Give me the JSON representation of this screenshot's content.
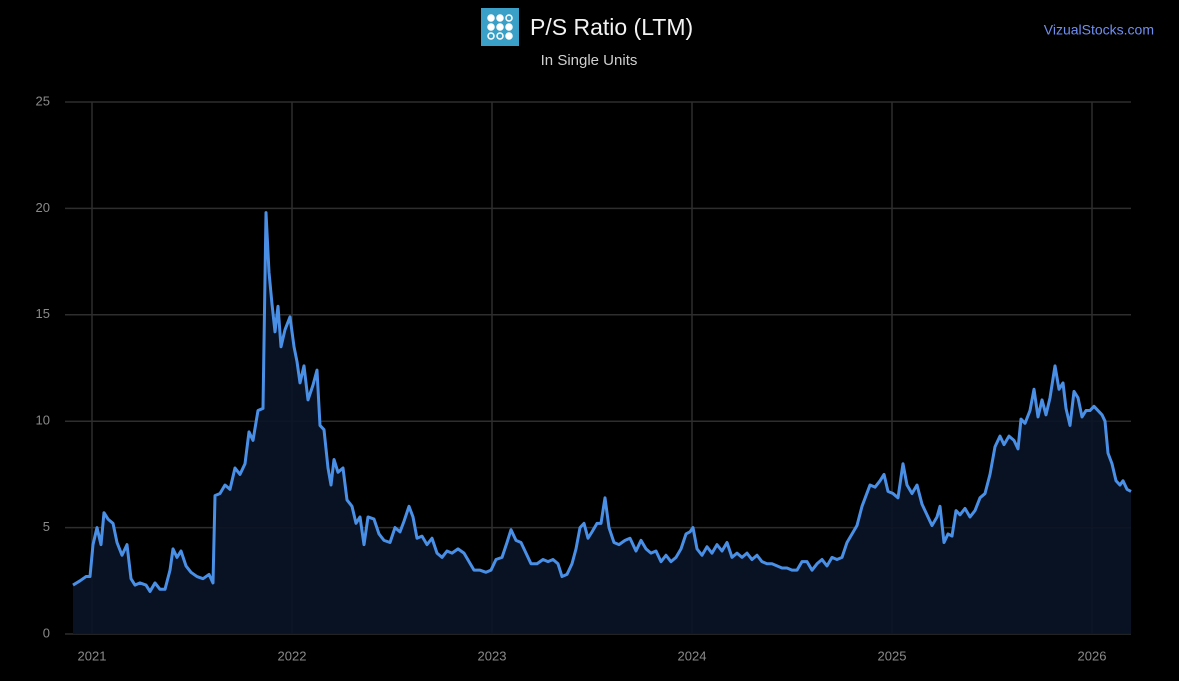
{
  "chart_data": {
    "type": "line",
    "title": "P/S Ratio (LTM)",
    "subtitle": "In Single Units",
    "watermark": "VizualStocks.com",
    "color": "#4a8fe6",
    "grid": true,
    "xlim": [
      2020.865,
      2026.195
    ],
    "xticks": [
      2021,
      2022,
      2023,
      2024,
      2025,
      2026
    ],
    "ylim": [
      0,
      25
    ],
    "yticks": [
      0,
      5,
      10,
      15,
      20,
      25
    ],
    "x": [
      2020.905,
      2020.94,
      2020.97,
      2020.99,
      2021.005,
      2021.025,
      2021.045,
      2021.06,
      2021.08,
      2021.105,
      2021.125,
      2021.15,
      2021.175,
      2021.195,
      2021.215,
      2021.24,
      2021.27,
      2021.29,
      2021.315,
      2021.34,
      2021.365,
      2021.39,
      2021.405,
      2021.425,
      2021.445,
      2021.47,
      2021.495,
      2021.525,
      2021.555,
      2021.585,
      2021.605,
      2021.615,
      2021.64,
      2021.665,
      2021.69,
      2021.715,
      2021.74,
      2021.765,
      2021.785,
      2021.805,
      2021.83,
      2021.855,
      2021.87,
      2021.885,
      2021.9,
      2021.915,
      2021.93,
      2021.945,
      2021.965,
      2021.99,
      2022.01,
      2022.025,
      2022.04,
      2022.06,
      2022.08,
      2022.105,
      2022.125,
      2022.14,
      2022.16,
      2022.18,
      2022.195,
      2022.21,
      2022.23,
      2022.255,
      2022.275,
      2022.3,
      2022.32,
      2022.34,
      2022.36,
      2022.38,
      2022.41,
      2022.435,
      2022.46,
      2022.49,
      2022.515,
      2022.54,
      2022.56,
      2022.585,
      2022.605,
      2022.625,
      2022.65,
      2022.675,
      2022.7,
      2022.725,
      2022.75,
      2022.775,
      2022.8,
      2022.83,
      2022.86,
      2022.885,
      2022.91,
      2022.94,
      2022.97,
      2022.995,
      2023.02,
      2023.05,
      2023.075,
      2023.095,
      2023.12,
      2023.145,
      2023.17,
      2023.195,
      2023.225,
      2023.255,
      2023.28,
      2023.305,
      2023.33,
      2023.35,
      2023.375,
      2023.4,
      2023.42,
      2023.44,
      2023.46,
      2023.48,
      2023.5,
      2023.525,
      2023.545,
      2023.565,
      2023.585,
      2023.61,
      2023.635,
      2023.665,
      2023.69,
      2023.72,
      2023.745,
      2023.77,
      2023.795,
      2023.82,
      2023.845,
      2023.87,
      2023.895,
      2023.92,
      2023.945,
      2023.97,
      2023.99,
      2024.005,
      2024.025,
      2024.05,
      2024.075,
      2024.1,
      2024.125,
      2024.15,
      2024.175,
      2024.2,
      2024.225,
      2024.25,
      2024.275,
      2024.3,
      2024.325,
      2024.35,
      2024.375,
      2024.4,
      2024.425,
      2024.45,
      2024.475,
      2024.5,
      2024.525,
      2024.55,
      2024.575,
      2024.6,
      2024.625,
      2024.65,
      2024.675,
      2024.7,
      2024.725,
      2024.75,
      2024.775,
      2024.8,
      2024.825,
      2024.85,
      2024.87,
      2024.89,
      2024.915,
      2024.94,
      2024.96,
      2024.98,
      2025.005,
      2025.03,
      2025.055,
      2025.075,
      2025.1,
      2025.125,
      2025.15,
      2025.175,
      2025.2,
      2025.225,
      2025.24,
      2025.26,
      2025.28,
      2025.3,
      2025.32,
      2025.34,
      2025.365,
      2025.39,
      2025.415,
      2025.44,
      2025.465,
      2025.49,
      2025.515,
      2025.54,
      2025.56,
      2025.585,
      2025.61,
      2025.63,
      2025.645,
      2025.665,
      2025.69,
      2025.71,
      2025.73,
      2025.75,
      2025.77,
      2025.79,
      2025.815,
      2025.835,
      2025.855,
      2025.87,
      2025.89,
      2025.91,
      2025.93,
      2025.95,
      2025.97,
      2025.99,
      2026.01,
      2026.03,
      2026.05,
      2026.065,
      2026.08,
      2026.1,
      2026.12,
      2026.14,
      2026.155,
      2026.175,
      2026.195
    ],
    "values": [
      2.3,
      2.5,
      2.7,
      2.7,
      4.2,
      5.0,
      4.2,
      5.7,
      5.4,
      5.2,
      4.3,
      3.7,
      4.2,
      2.6,
      2.3,
      2.4,
      2.3,
      2.0,
      2.4,
      2.1,
      2.1,
      3.0,
      4.0,
      3.6,
      3.9,
      3.2,
      2.9,
      2.7,
      2.6,
      2.8,
      2.4,
      6.5,
      6.6,
      7.0,
      6.8,
      7.8,
      7.5,
      8.0,
      9.5,
      9.1,
      10.5,
      10.6,
      19.8,
      17,
      15.5,
      14.2,
      15.4,
      13.5,
      14.3,
      14.9,
      13.5,
      12.8,
      11.8,
      12.6,
      11,
      11.7,
      12.4,
      9.8,
      9.6,
      7.8,
      7.0,
      8.2,
      7.6,
      7.8,
      6.3,
      6.0,
      5.2,
      5.5,
      4.2,
      5.5,
      5.4,
      4.7,
      4.4,
      4.3,
      5.0,
      4.8,
      5.3,
      6.0,
      5.5,
      4.5,
      4.6,
      4.2,
      4.5,
      3.8,
      3.6,
      3.9,
      3.8,
      4.0,
      3.8,
      3.4,
      3.0,
      3.0,
      2.9,
      3.0,
      3.5,
      3.6,
      4.3,
      4.9,
      4.4,
      4.3,
      3.8,
      3.3,
      3.3,
      3.5,
      3.4,
      3.5,
      3.3,
      2.7,
      2.8,
      3.3,
      4.0,
      5.0,
      5.2,
      4.5,
      4.8,
      5.2,
      5.2,
      6.4,
      5.0,
      4.3,
      4.2,
      4.4,
      4.5,
      3.9,
      4.4,
      4.0,
      3.8,
      3.9,
      3.4,
      3.7,
      3.4,
      3.6,
      4.0,
      4.7,
      4.8,
      5.0,
      4.0,
      3.7,
      4.1,
      3.8,
      4.2,
      3.9,
      4.3,
      3.6,
      3.8,
      3.6,
      3.8,
      3.5,
      3.7,
      3.4,
      3.3,
      3.3,
      3.2,
      3.1,
      3.1,
      3.0,
      3.0,
      3.4,
      3.4,
      3.0,
      3.3,
      3.5,
      3.2,
      3.6,
      3.5,
      3.6,
      4.3,
      4.7,
      5.1,
      6.0,
      6.5,
      7.0,
      6.9,
      7.2,
      7.5,
      6.7,
      6.6,
      6.4,
      8.0,
      7.0,
      6.6,
      7.0,
      6.1,
      5.6,
      5.1,
      5.5,
      6.0,
      4.3,
      4.7,
      4.6,
      5.8,
      5.6,
      5.9,
      5.5,
      5.8,
      6.4,
      6.6,
      7.5,
      8.8,
      9.3,
      8.9,
      9.3,
      9.1,
      8.7,
      10.1,
      9.9,
      10.5,
      11.5,
      10.2,
      11.0,
      10.3,
      11.1,
      12.6,
      11.5,
      11.8,
      10.6,
      9.8,
      11.4,
      11.1,
      10.2,
      10.5,
      10.5,
      10.7,
      10.5,
      10.3,
      10.0,
      8.5,
      8.0,
      7.2,
      7.0,
      7.2,
      6.8,
      6.7
    ]
  }
}
